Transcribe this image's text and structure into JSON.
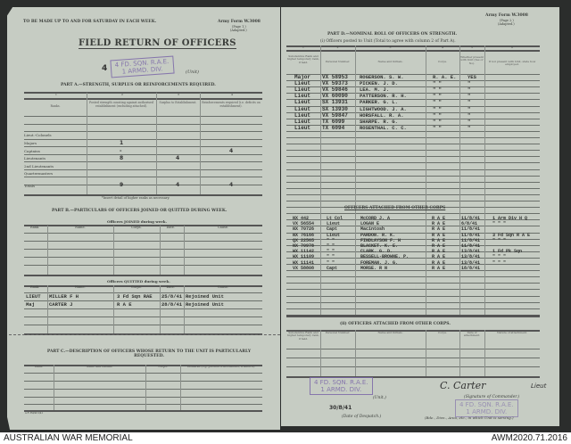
{
  "colors": {
    "paper": "#c6ccc3",
    "background": "#2b2d2c",
    "stamp": "#7b68a8",
    "ink": "#2f312f"
  },
  "left": {
    "instruction": "TO BE MADE UP TO AND FOR SATURDAY IN EACH WEEK.",
    "form_no": "Army Form W.3008",
    "page": "(Page 1.)",
    "adapted": "(Adapted.)",
    "title": "FIELD RETURN OF OFFICERS",
    "unit_hand": "4",
    "unit_stamp": [
      "4 FD. SQN. R.A.E.",
      "1 ARMD. DIV."
    ],
    "unit_label": "(Unit)",
    "part_a": {
      "title": "PART A.—STRENGTH, SURPLUS OR REINFORCEMENTS REQUIRED.",
      "col_numbers": [
        "1",
        "2",
        "3",
        "4"
      ],
      "headers": [
        "Ranks.",
        "Posted strength counting against authorised establishment (excluding attached).",
        "Surplus to Establishment.",
        "Reinforcements required (i.e. deficits on establishment)."
      ],
      "rows": [
        {
          "rank": "Lieut.-Colonels",
          "posted": "",
          "surplus": "",
          "reinf": ""
        },
        {
          "rank": "Majors",
          "posted": "1",
          "surplus": "",
          "reinf": ""
        },
        {
          "rank": "Captains",
          "posted": "-",
          "surplus": "",
          "reinf": "4"
        },
        {
          "rank": "Lieutenants",
          "posted": "8",
          "surplus": "4",
          "reinf": ""
        },
        {
          "rank": "2nd Lieutenants",
          "posted": "",
          "surplus": "",
          "reinf": ""
        },
        {
          "rank": "Quartermasters",
          "posted": "",
          "surplus": "",
          "reinf": ""
        }
      ],
      "totals": {
        "label": "Totals",
        "posted": "9",
        "surplus": "4",
        "reinf": "4"
      },
      "footnote": "*Insert detail of higher ranks as necessary."
    },
    "part_b": {
      "title": "PART B.—PARTICULARS OF OFFICERS JOINED OR QUITTED DURING WEEK.",
      "joined_title": "Officers JOINED during week.",
      "quitted_title": "Officers QUITTED during week.",
      "headers": [
        "Rank.",
        "Name.",
        "Corps.",
        "Date.",
        "Cause."
      ],
      "quitted": [
        {
          "rank": "LIEUT",
          "name": "MILLER F H",
          "corps": "3 Fd Sqn RAE",
          "date": "25/8/41",
          "cause": "Rejoined Unit"
        },
        {
          "rank": "Maj",
          "name": "CARTER J",
          "corps": "R A E",
          "date": "28/8/41",
          "cause": "Rejoined Unit"
        }
      ]
    },
    "part_c": {
      "title": "PART C.—DESCRIPTION OF OFFICERS WHOSE RETURN TO THE UNIT IS PARTICULARLY REQUESTED.",
      "headers": [
        "Rank.",
        "Name and Initials.",
        "Corps.",
        "Remarks (e.g. present whereabouts, if known)."
      ]
    },
    "print_code": "A.F. 3M/40 2/41"
  },
  "right": {
    "form_no": "Army Form W.3008",
    "page": "(Page 2.)",
    "adapted": "(Adapted.)",
    "part_d_title": "PART D.—NOMINAL ROLL OF OFFICERS ON STRENGTH.",
    "sub_i": "(i) Officers posted to Unit (Total to agree with column 2 of Part A).",
    "col_numbers": [
      "1",
      "2",
      "3",
      "4",
      "5",
      "6"
    ],
    "headers": [
      "Substantive Rank and higher temporary rank, if held.",
      "Personal Number.",
      "Name and Initials.",
      "Corps.",
      "Whether present with Unit (Yes or No).",
      "If not present with Unit, state how employed."
    ],
    "officers": [
      {
        "rank": "Major",
        "number": "VX 58953",
        "name": "ROGERSON. S. W.",
        "corps": "R. A. E.",
        "present": "YES"
      },
      {
        "rank": "Lieut",
        "number": "VX 59373",
        "name": "PICKEN. J. D.",
        "corps": "\"  \"",
        "present": "\""
      },
      {
        "rank": "Lieut",
        "number": "VX 59846",
        "name": "LEA. M. J.",
        "corps": "\"  \"",
        "present": "\""
      },
      {
        "rank": "Lieut",
        "number": "VX 60090",
        "name": "PATTERSON. R. H.",
        "corps": "\"  \"",
        "present": "\""
      },
      {
        "rank": "Lieut",
        "number": "SX 13931",
        "name": "PARKER. G. L.",
        "corps": "\"  \"",
        "present": "\""
      },
      {
        "rank": "Lieut",
        "number": "SX 13930",
        "name": "LIGHTWOOD. J. A.",
        "corps": "\"  \"",
        "present": "\""
      },
      {
        "rank": "Lieut",
        "number": "VX 59847",
        "name": "HORSFALL. R. A.",
        "corps": "\"  \"",
        "present": "\""
      },
      {
        "rank": "Lieut",
        "number": "TX 6099",
        "name": "SHARPE. R. G.",
        "corps": "\"  \"",
        "present": "\""
      },
      {
        "rank": "Lieut",
        "number": "TX 6094",
        "name": "ROSENTHAL. C. C.",
        "corps": "\"  \"",
        "present": "\""
      }
    ],
    "attached_heading": "OFFICERS ATTACHED FROM OTHER CORPS",
    "attached": [
      {
        "number": "NX 442",
        "rank": "Lt Col",
        "name": "McCORD J. A",
        "corps": "R A E",
        "date": "11/8/41",
        "employed": "1 Arm Div H Q"
      },
      {
        "number": "VX 56554",
        "rank": "Lieut",
        "name": "LOGAN E",
        "corps": "R A E",
        "date": "6/8/41",
        "employed": "\"  \"  \""
      },
      {
        "number": "NX 70726",
        "rank": "Capt",
        "name": "Macintosh",
        "corps": "R A E",
        "date": "11/8/41",
        "employed": ""
      },
      {
        "number": "NX 76166",
        "rank": "Lieut",
        "name": "PARDON. R. K.",
        "corps": "R A E",
        "date": "11/8/41",
        "employed": "3 Fd Sqn R A E"
      },
      {
        "number": "QX 22565",
        "rank": "\"  \"",
        "name": "FINDLAYSON  F. H",
        "corps": "R A E",
        "date": "11/8/41",
        "employed": "\"  \"  \""
      },
      {
        "number": "NX 70978",
        "rank": "\"  \"",
        "name": "BLACKET. K. E.",
        "corps": "R A E",
        "date": "11/8/41",
        "employed": ""
      },
      {
        "number": "WX 11142",
        "rank": "\"  \"",
        "name": "CLARK. G. D.",
        "corps": "R A E",
        "date": "13/8/41",
        "employed": "1 Fd Pk Sqn"
      },
      {
        "number": "WX 11109",
        "rank": "\"  \"",
        "name": "BESSELL-BROWNE. P.",
        "corps": "R A E",
        "date": "13/8/41",
        "employed": "\"  \"  \""
      },
      {
        "number": "WX 11141",
        "rank": "\"  \"",
        "name": "FOREMAN. J. G.",
        "corps": "R A E",
        "date": "13/8/41",
        "employed": "\"  \"  \""
      },
      {
        "number": "VX 58808",
        "rank": "Capt",
        "name": "MORSE. R N",
        "corps": "R A E",
        "date": "18/8/41",
        "employed": ""
      }
    ],
    "sub_ii": "(ii) OFFICERS ATTACHED FROM OTHER CORPS.",
    "headers_ii": [
      "Substantive Rank and higher temporary rank, if held.",
      "Personal Number.",
      "Name and Initials.",
      "Corps.",
      "Date of attachment.",
      "Nature of attachment."
    ],
    "unit_stamp": [
      "4 FD. SQN. R.A.E.",
      "1 ARMD. DIV."
    ],
    "unit_label": "(Unit.)",
    "despatch_date": "30/8/41",
    "despatch_label": "(Date of Despatch.)",
    "signature": "C. Carter",
    "signature_rank": "Lieut",
    "signature_label": "(Signature of Commander.)",
    "formation_stamp": [
      "4 FD. SQN. R.A.E.",
      "1 ARMD. DIV."
    ],
    "formation_label": "(Bde., Divn., Area, etc., in which Unit is serving.)"
  },
  "captions": {
    "left": "AUSTRALIAN WAR MEMORIAL",
    "right": "AWM2020.71.2016"
  }
}
